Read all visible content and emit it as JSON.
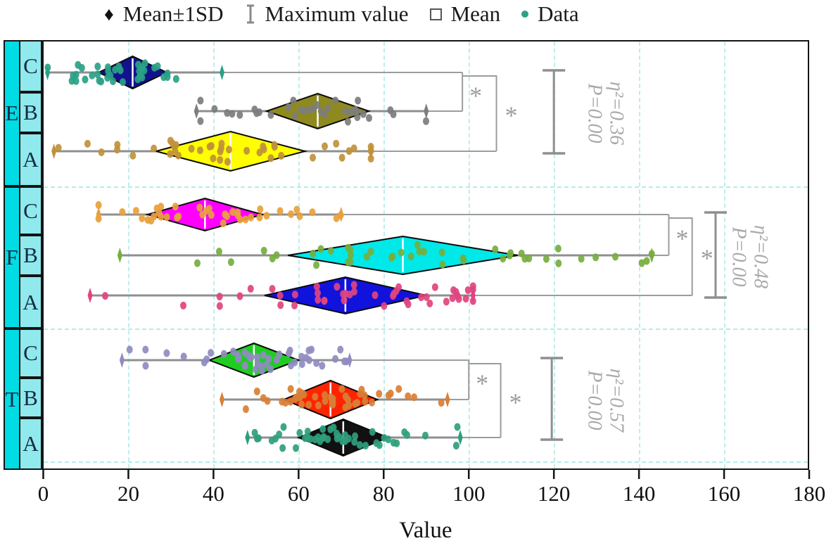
{
  "legend": {
    "items": [
      {
        "icon": "diamond-icon",
        "label": "Mean±1SD"
      },
      {
        "icon": "errorbar-icon",
        "label": "Maximum value"
      },
      {
        "icon": "square-icon",
        "label": "Mean"
      },
      {
        "icon": "dot-icon",
        "label": "Data"
      }
    ]
  },
  "axis": {
    "label": "Value",
    "ticks": [
      "0",
      "20",
      "40",
      "60",
      "80",
      "100",
      "120",
      "140",
      "160",
      "180"
    ],
    "min": 0,
    "max": 180
  },
  "colors": {
    "grid": "#bdeeec",
    "whisker": "#8f8f8f",
    "bracket": "#9c9c9c",
    "annotation": "#a9a9a9",
    "label_outer_bg": "#00dce4",
    "label_inner_bg": "#90e9ec",
    "label_text": "#132c47",
    "legend_dot": "#2aa187",
    "legend_errorbar": "#8a8a8a"
  },
  "chart_data": {
    "type": "diamond (mean±1SD) distribution plot with jittered data points and min–max whiskers",
    "title": "",
    "xlabel": "Value",
    "ylabel": "",
    "xlim": [
      0,
      180
    ],
    "grid_step": 20,
    "groups": [
      {
        "name": "E",
        "annotation": [
          "η²=0.36",
          "P=0.00"
        ],
        "rows": [
          {
            "sub": "C",
            "mean": 21,
            "sd": 8,
            "min": 1,
            "max": 42,
            "n": 38,
            "fill": "#12128c",
            "dot": "#2aa187"
          },
          {
            "sub": "B",
            "mean": 64.5,
            "sd": 12,
            "min": 36,
            "max": 90,
            "n": 34,
            "fill": "#8f8a1e",
            "dot": "#7d7d7d"
          },
          {
            "sub": "A",
            "mean": 44,
            "sd": 17.5,
            "min": 2.5,
            "max": 77,
            "n": 42,
            "fill": "#ffff00",
            "dot": "#c0913a"
          }
        ],
        "sig": {
          "inner_x": 98.5,
          "outer_x": 106.5,
          "ibeam_x": 120,
          "text_x": 132,
          "stars": [
            "*",
            "*"
          ]
        }
      },
      {
        "name": "F",
        "annotation": [
          "η²=0.48",
          "P=0.00"
        ],
        "rows": [
          {
            "sub": "C",
            "mean": 38,
            "sd": 13.5,
            "min": 13,
            "max": 70,
            "n": 40,
            "fill": "#ff00ff",
            "dot": "#e8a13c"
          },
          {
            "sub": "B",
            "mean": 84.5,
            "sd": 27,
            "min": 18,
            "max": 143,
            "n": 44,
            "fill": "#00e8e8",
            "dot": "#76ae3e"
          },
          {
            "sub": "A",
            "mean": 71,
            "sd": 19,
            "min": 11,
            "max": 101,
            "n": 46,
            "fill": "#1212dd",
            "dot": "#e0447e"
          }
        ],
        "sig": {
          "inner_x": 147,
          "outer_x": 152.5,
          "ibeam_x": 158,
          "text_x": 166,
          "stars": [
            "*",
            "*"
          ]
        }
      },
      {
        "name": "T",
        "annotation": [
          "η²=0.57",
          "P=0.00"
        ],
        "rows": [
          {
            "sub": "C",
            "mean": 49.5,
            "sd": 10.5,
            "min": 18.5,
            "max": 72,
            "n": 46,
            "fill": "#21cc21",
            "dot": "#8f8cc0"
          },
          {
            "sub": "B",
            "mean": 67.5,
            "sd": 11,
            "min": 42,
            "max": 95,
            "n": 46,
            "fill": "#ff2400",
            "dot": "#d97f35"
          },
          {
            "sub": "A",
            "mean": 70.5,
            "sd": 10.5,
            "min": 48,
            "max": 98,
            "n": 46,
            "fill": "#111111",
            "dot": "#2f9e7d"
          }
        ],
        "sig": {
          "inner_x": 100,
          "outer_x": 107.5,
          "ibeam_x": 119.5,
          "text_x": 132,
          "stars": [
            "*",
            "*"
          ]
        }
      }
    ]
  }
}
